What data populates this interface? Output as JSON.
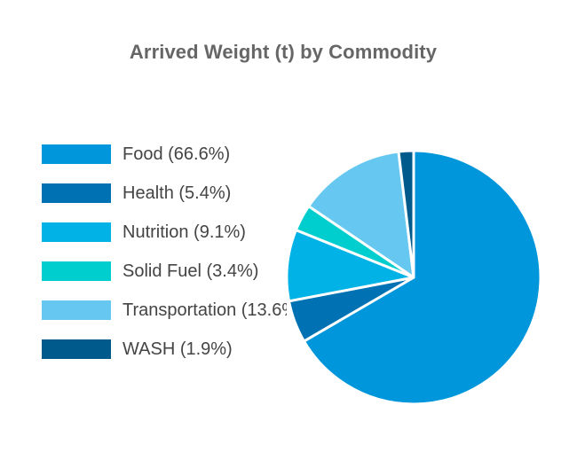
{
  "chart_data": {
    "type": "pie",
    "title": "Arrived Weight (t) by Commodity",
    "legend_placement": "left",
    "slices": [
      {
        "label": "Food (66.6%)",
        "name": "Food",
        "value": 66.6,
        "color": "#0096db"
      },
      {
        "label": "Health (5.4%)",
        "name": "Health",
        "value": 5.4,
        "color": "#0072b4"
      },
      {
        "label": "Nutrition (9.1%)",
        "name": "Nutrition",
        "value": 9.1,
        "color": "#00b2e6"
      },
      {
        "label": "Solid Fuel (3.4%)",
        "name": "Solid Fuel",
        "value": 3.4,
        "color": "#00cdcd"
      },
      {
        "label": "Transportation (13.6%)",
        "name": "Transportation",
        "value": 13.6,
        "color": "#66c8f0"
      },
      {
        "label": "WASH (1.9%)",
        "name": "WASH",
        "value": 1.9,
        "color": "#005a8c"
      }
    ]
  }
}
